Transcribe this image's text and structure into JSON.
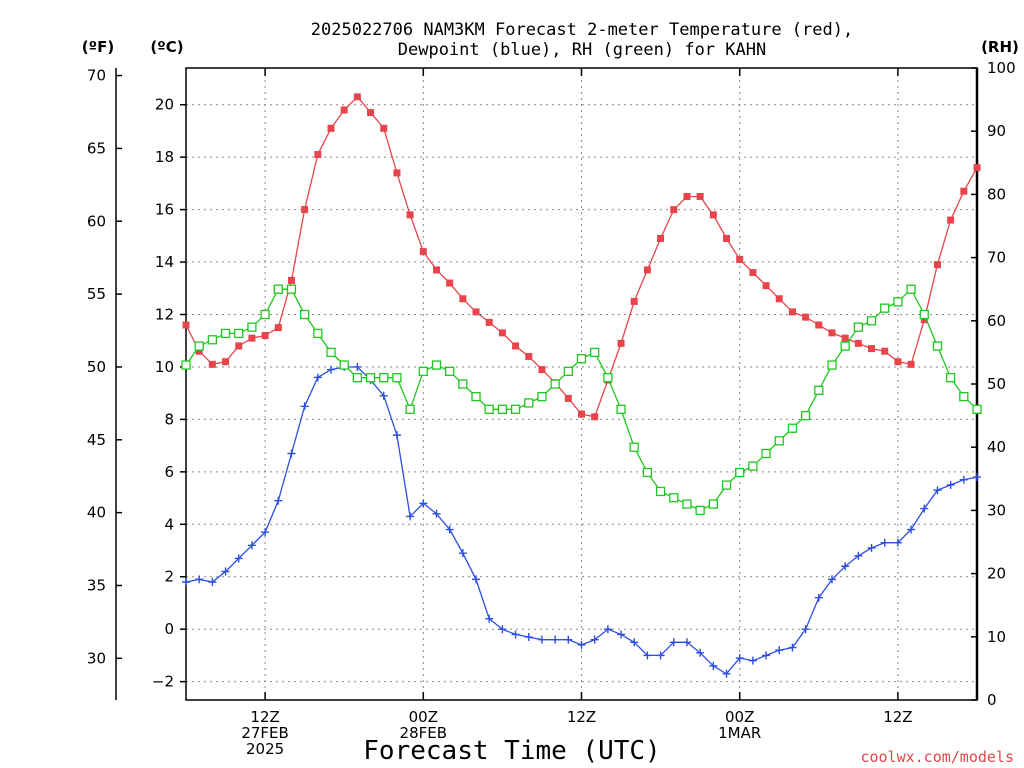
{
  "chart_data": {
    "type": "line",
    "title": [
      "2025022706 NAM3KM Forecast 2-meter Temperature (red),",
      "Dewpoint (blue), RH (green) for KAHN"
    ],
    "xlabel": "Forecast Time (UTC)",
    "credit": "coolwx.com/models",
    "unit_f": "(ºF)",
    "unit_c": "(ºC)",
    "unit_rh": "(RH)",
    "hours_range": [
      0,
      60
    ],
    "x_ticks": [
      {
        "hour": 6,
        "lines": [
          "12Z",
          "27FEB",
          "2025"
        ]
      },
      {
        "hour": 18,
        "lines": [
          "00Z",
          "28FEB"
        ]
      },
      {
        "hour": 30,
        "lines": [
          "12Z"
        ]
      },
      {
        "hour": 42,
        "lines": [
          "00Z",
          "1MAR"
        ]
      },
      {
        "hour": 54,
        "lines": [
          "12Z"
        ]
      }
    ],
    "y_c_range": [
      -2.7,
      21.4
    ],
    "y_c_ticks": [
      -2,
      0,
      2,
      4,
      6,
      8,
      10,
      12,
      14,
      16,
      18,
      20
    ],
    "y_f_ticks": [
      30,
      35,
      40,
      45,
      50,
      55,
      60,
      65,
      70
    ],
    "y_rh_range": [
      0,
      100
    ],
    "y_rh_ticks": [
      0,
      10,
      20,
      30,
      40,
      50,
      60,
      70,
      80,
      90,
      100
    ],
    "grid": true,
    "series": [
      {
        "name": "Temperature",
        "color": "#e8444b",
        "marker": "filled-square",
        "axis": "c",
        "values": [
          11.6,
          10.6,
          10.1,
          10.2,
          10.8,
          11.1,
          11.2,
          11.5,
          13.3,
          16.0,
          18.1,
          19.1,
          19.8,
          20.3,
          19.7,
          19.1,
          17.4,
          15.8,
          14.4,
          13.7,
          13.2,
          12.6,
          12.1,
          11.7,
          11.3,
          10.8,
          10.4,
          9.9,
          9.4,
          8.8,
          8.2,
          8.1,
          9.5,
          10.9,
          12.5,
          13.7,
          14.9,
          16.0,
          16.5,
          16.5,
          15.8,
          14.9,
          14.1,
          13.6,
          13.1,
          12.6,
          12.1,
          11.9,
          11.6,
          11.3,
          11.1,
          10.9,
          10.7,
          10.6,
          10.2,
          10.1,
          11.8,
          13.9,
          15.6,
          16.7,
          17.6
        ]
      },
      {
        "name": "Dewpoint",
        "color": "#2d4ee0",
        "marker": "plus",
        "axis": "c",
        "values": [
          1.8,
          1.9,
          1.8,
          2.2,
          2.7,
          3.2,
          3.7,
          4.9,
          6.7,
          8.5,
          9.6,
          9.9,
          10.0,
          10.0,
          9.5,
          8.9,
          7.4,
          4.3,
          4.8,
          4.4,
          3.8,
          2.9,
          1.9,
          0.4,
          0.0,
          -0.2,
          -0.3,
          -0.4,
          -0.4,
          -0.4,
          -0.6,
          -0.4,
          0.0,
          -0.2,
          -0.5,
          -1.0,
          -1.0,
          -0.5,
          -0.5,
          -0.9,
          -1.4,
          -1.7,
          -1.1,
          -1.2,
          -1.0,
          -0.8,
          -0.7,
          0.0,
          1.2,
          1.9,
          2.4,
          2.8,
          3.1,
          3.3,
          3.3,
          3.8,
          4.6,
          5.3,
          5.5,
          5.7,
          5.8
        ]
      },
      {
        "name": "RH",
        "color": "#1ec81e",
        "marker": "open-square",
        "axis": "rh",
        "values": [
          53,
          56,
          57,
          58,
          58,
          59,
          61,
          65,
          65,
          61,
          58,
          55,
          53,
          51,
          51,
          51,
          51,
          46,
          52,
          53,
          52,
          50,
          48,
          46,
          46,
          46,
          47,
          48,
          50,
          52,
          54,
          55,
          51,
          46,
          40,
          36,
          33,
          32,
          31,
          30,
          31,
          34,
          36,
          37,
          39,
          41,
          43,
          45,
          49,
          53,
          56,
          59,
          60,
          62,
          63,
          65,
          61,
          56,
          51,
          48,
          46
        ]
      }
    ]
  }
}
